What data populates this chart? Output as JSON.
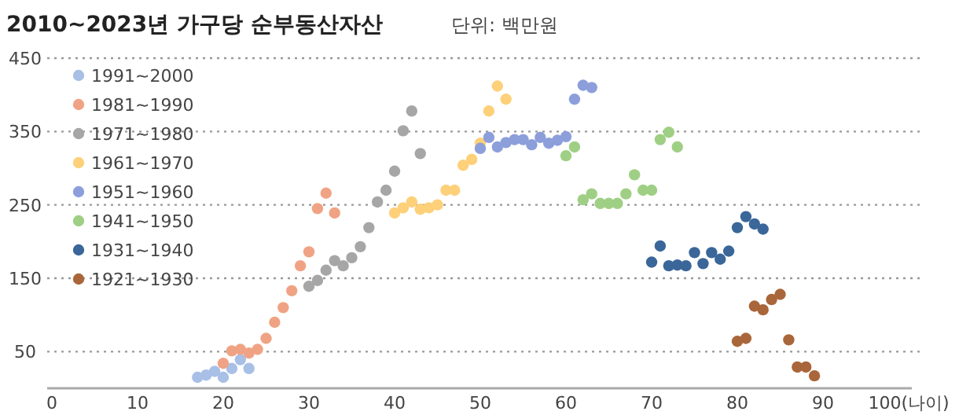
{
  "chart_data": {
    "type": "scatter",
    "title": "2010~2023년 가구당 순부동산자산",
    "subtitle": "단위: 백만원",
    "xlim": [
      0,
      100
    ],
    "ylim": [
      0,
      450
    ],
    "xticks": [
      0,
      10,
      20,
      30,
      40,
      50,
      60,
      70,
      80,
      90,
      {
        "value": 100,
        "label": "100(나이)"
      }
    ],
    "yticks": [
      50,
      150,
      250,
      350,
      450
    ],
    "grid": "y",
    "legend": "top left",
    "marker": "circle",
    "series": [
      {
        "name": "1991~2000",
        "color": "#a8bfe6",
        "x": [
          17,
          18,
          19,
          20,
          21,
          22,
          23
        ],
        "values": [
          15,
          18,
          23,
          15,
          27,
          39,
          27
        ]
      },
      {
        "name": "1981~1990",
        "color": "#f0a384",
        "x": [
          20,
          21,
          22,
          23,
          24,
          25,
          26,
          27,
          28,
          29,
          30,
          31,
          32,
          33
        ],
        "values": [
          34,
          51,
          53,
          48,
          53,
          68,
          90,
          110,
          133,
          167,
          186,
          245,
          266,
          239
        ]
      },
      {
        "name": "1971~1980",
        "color": "#a6a6a6",
        "x": [
          30,
          31,
          32,
          33,
          34,
          35,
          36,
          37,
          38,
          39,
          40,
          41,
          42,
          43
        ],
        "values": [
          139,
          147,
          161,
          174,
          167,
          178,
          193,
          219,
          254,
          270,
          296,
          351,
          378,
          320
        ]
      },
      {
        "name": "1961~1970",
        "color": "#fdd079",
        "x": [
          40,
          41,
          42,
          43,
          44,
          45,
          46,
          47,
          48,
          49,
          50,
          51,
          52,
          53
        ],
        "values": [
          239,
          246,
          254,
          244,
          246,
          250,
          270,
          270,
          304,
          312,
          334,
          378,
          412,
          394
        ]
      },
      {
        "name": "1951~1960",
        "color": "#8c9fdb",
        "x": [
          50,
          51,
          52,
          53,
          54,
          55,
          56,
          57,
          58,
          59,
          60,
          61,
          62,
          63
        ],
        "values": [
          327,
          342,
          329,
          335,
          339,
          339,
          332,
          342,
          334,
          338,
          343,
          394,
          413,
          410
        ]
      },
      {
        "name": "1941~1950",
        "color": "#9fcf84",
        "x": [
          60,
          61,
          62,
          63,
          64,
          65,
          66,
          67,
          68,
          69,
          70,
          71,
          72,
          73
        ],
        "values": [
          317,
          329,
          257,
          265,
          252,
          252,
          252,
          265,
          291,
          270,
          270,
          339,
          349,
          329
        ]
      },
      {
        "name": "1931~1940",
        "color": "#3a6699",
        "x": [
          70,
          71,
          72,
          73,
          74,
          75,
          76,
          77,
          78,
          79,
          80,
          81,
          82,
          83
        ],
        "values": [
          172,
          194,
          167,
          168,
          167,
          185,
          170,
          185,
          176,
          187,
          219,
          234,
          224,
          217
        ]
      },
      {
        "name": "1921~1930",
        "color": "#a9663a",
        "x": [
          80,
          81,
          82,
          83,
          84,
          85,
          86,
          87,
          88,
          89
        ],
        "values": [
          64,
          68,
          112,
          107,
          121,
          128,
          66,
          29,
          29,
          17
        ]
      }
    ]
  }
}
